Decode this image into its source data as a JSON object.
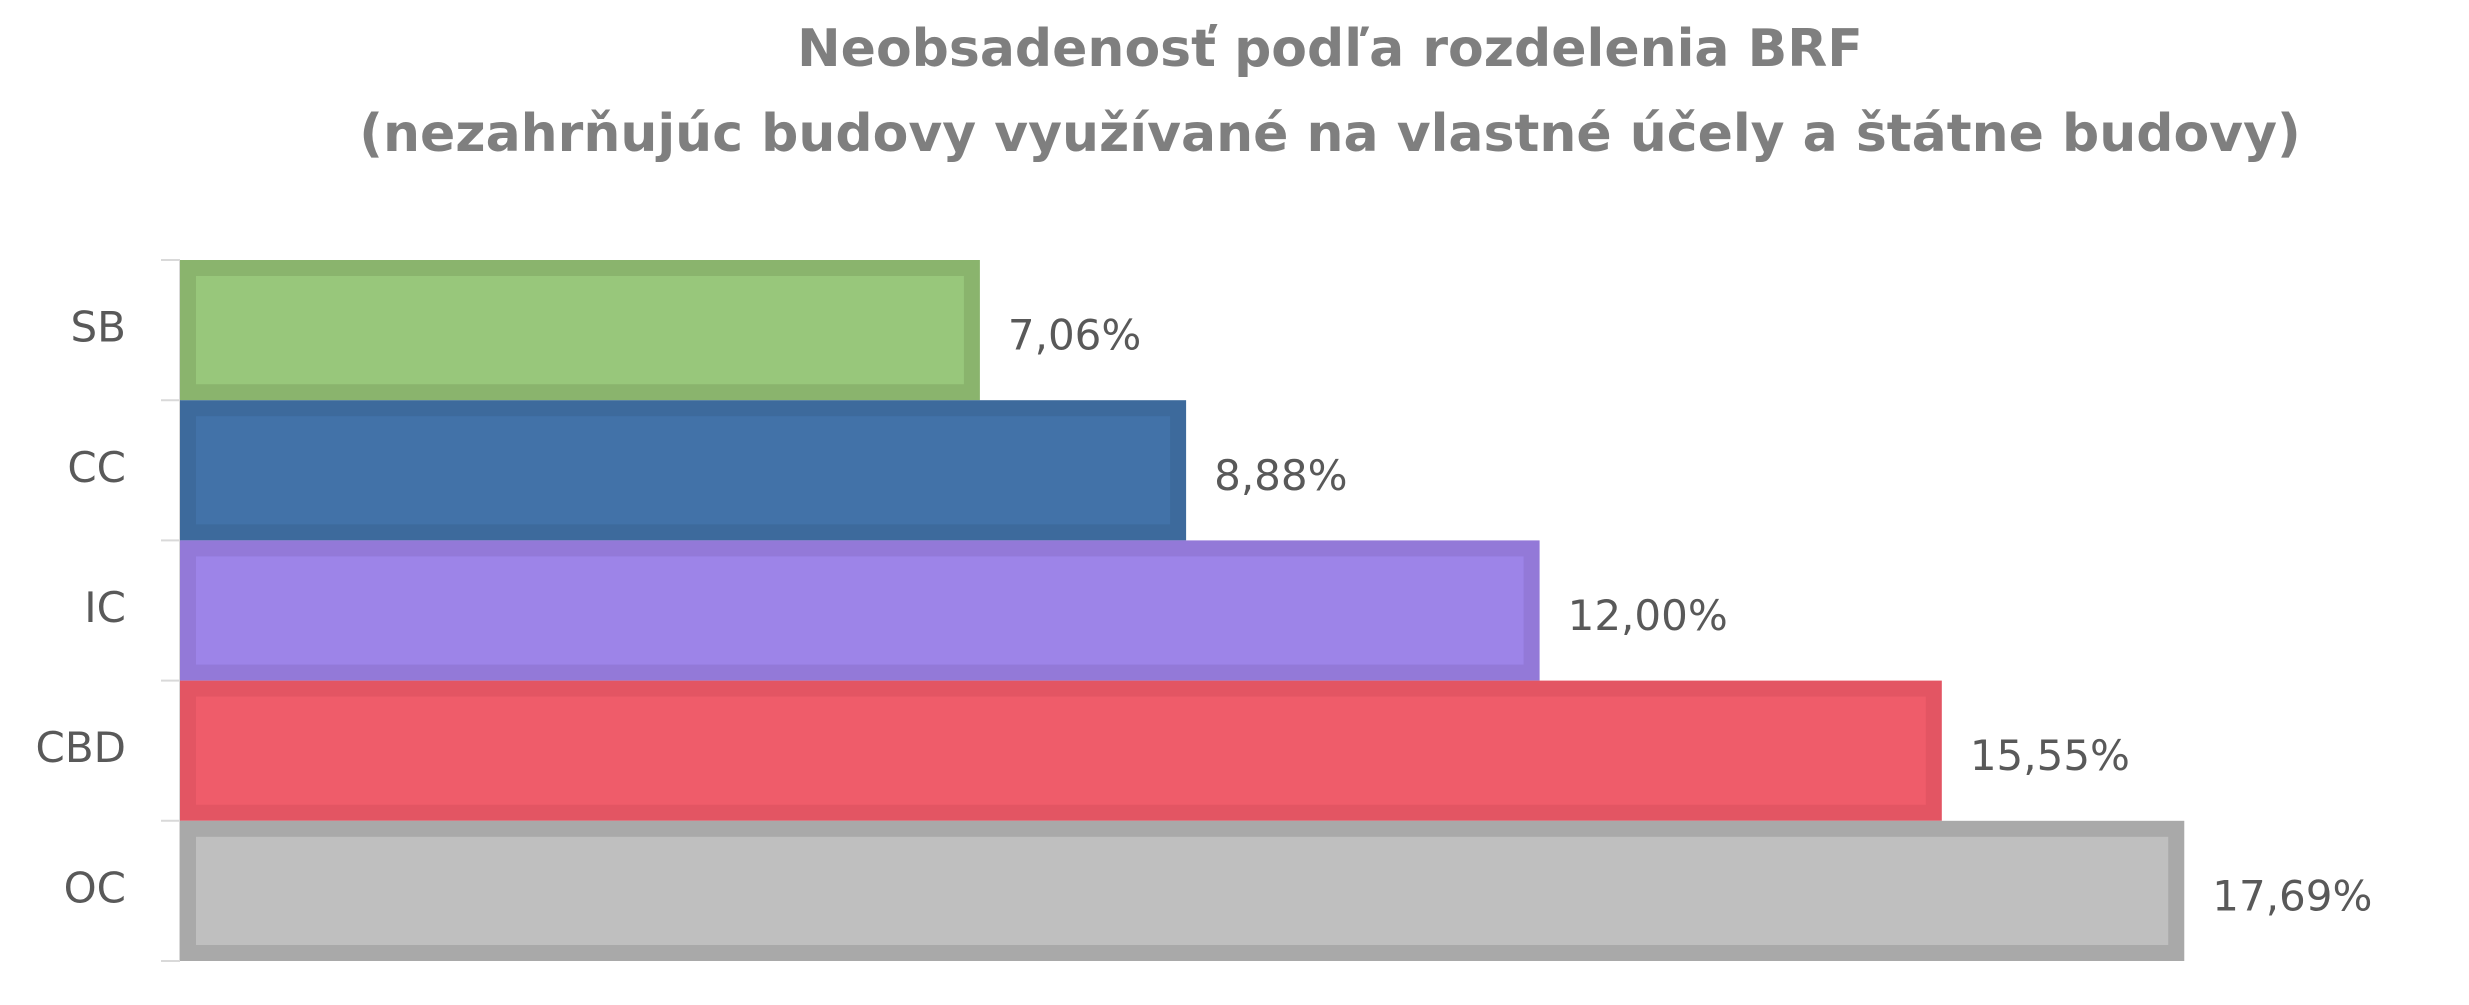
{
  "chart_data": {
    "type": "barh",
    "title": "Neobsadenosť podľa rozdelenia BRF",
    "subtitle": "(nezahrňujúc budovy využívané na vlastné účely a štátne budovy)",
    "categories": [
      "SB",
      "CC",
      "IC",
      "CBD",
      "OC"
    ],
    "values": [
      7.06,
      8.88,
      12.0,
      15.55,
      17.69
    ],
    "value_labels": [
      "7,06%",
      "8,88%",
      "12,00%",
      "15,55%",
      "17,69%"
    ],
    "colors": [
      "#98c77b",
      "#4272a8",
      "#9d84e8",
      "#ef5c6a",
      "#bfbfbf"
    ],
    "border_colors": [
      "#8ab46d",
      "#3d6a9c",
      "#9379d8",
      "#e35563",
      "#a9a9a9"
    ]
  }
}
